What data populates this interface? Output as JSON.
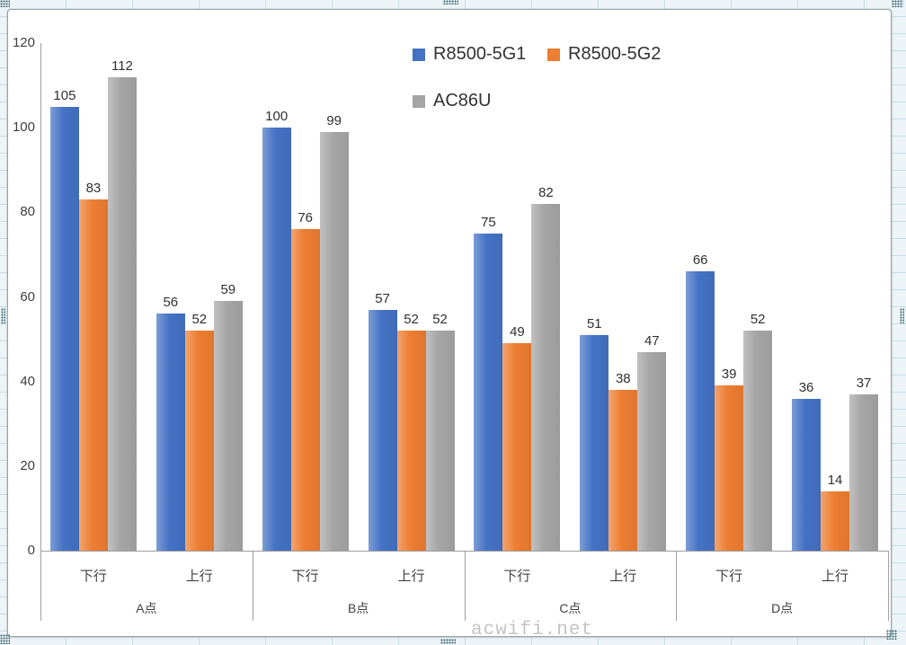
{
  "watermark": {
    "text": "acwifi.net",
    "color": "#c4c4c4"
  },
  "chart_data": {
    "type": "bar",
    "title": "",
    "xlabel": "",
    "ylabel": "",
    "groups": [
      "A点",
      "B点",
      "C点",
      "D点"
    ],
    "subcategories": [
      "下行",
      "上行"
    ],
    "series": [
      {
        "name": "R8500-5G1",
        "color": "#4472C4",
        "values": [
          [
            105,
            56
          ],
          [
            100,
            57
          ],
          [
            75,
            51
          ],
          [
            66,
            36
          ]
        ]
      },
      {
        "name": "R8500-5G2",
        "color": "#ED7D31",
        "values": [
          [
            83,
            52
          ],
          [
            76,
            52
          ],
          [
            49,
            38
          ],
          [
            39,
            14
          ]
        ]
      },
      {
        "name": "AC86U",
        "color": "#A5A5A5",
        "values": [
          [
            112,
            59
          ],
          [
            99,
            52
          ],
          [
            82,
            47
          ],
          [
            52,
            37
          ]
        ]
      }
    ],
    "y_axis": {
      "min": 0,
      "max": 120,
      "step": 20,
      "ticks": [
        0,
        20,
        40,
        60,
        80,
        100,
        120
      ]
    },
    "gridlines": false,
    "legend_position": "top",
    "data_labels": true
  }
}
